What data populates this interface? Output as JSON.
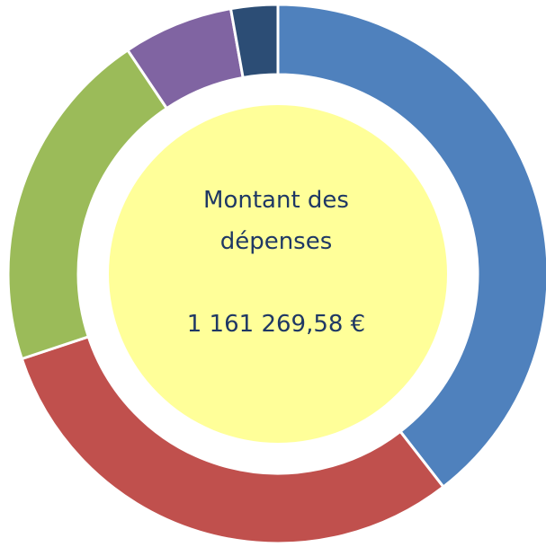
{
  "chart_data": {
    "type": "donut",
    "title": "Montant des dépenses",
    "total": "1 161 269,58 €",
    "values": [
      39.5,
      30.4,
      20.7,
      6.6,
      2.8
    ],
    "colors": [
      "#4f81bd",
      "#c0504d",
      "#9bbb59",
      "#8064a2",
      "#2c4d75"
    ],
    "center_color": "#ffff99"
  }
}
